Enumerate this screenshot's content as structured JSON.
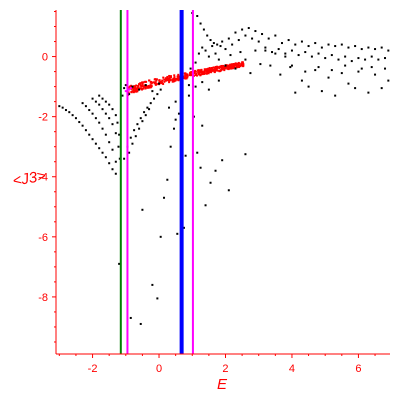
{
  "chart_data": {
    "type": "scatter",
    "xlabel": "E",
    "ylabel": "<J3>",
    "xlim": [
      -3.1,
      6.95
    ],
    "ylim": [
      -9.9,
      1.55
    ],
    "x_ticks": [
      -2,
      0,
      2,
      4,
      6
    ],
    "y_ticks": [
      0,
      -2,
      -4,
      -6,
      -8
    ],
    "colors": {
      "axis": "#ff0000",
      "points_black": "#000000",
      "points_red": "#ff0000"
    },
    "vertical_lines": [
      {
        "x": -1.15,
        "color": "#008000",
        "width": 2
      },
      {
        "x": -0.95,
        "color": "#ff00ff",
        "width": 2
      },
      {
        "x": 0.68,
        "color": "#0000ff",
        "width": 4
      },
      {
        "x": 1.02,
        "color": "#ff00ff",
        "width": 2
      }
    ],
    "series": [
      {
        "color": "#000000",
        "points": [
          [
            -3.0,
            -1.65
          ],
          [
            -2.9,
            -1.7
          ],
          [
            -2.8,
            -1.78
          ],
          [
            -2.7,
            -1.85
          ],
          [
            -2.6,
            -1.95
          ],
          [
            -2.5,
            -2.05
          ],
          [
            -2.4,
            -2.18
          ],
          [
            -2.3,
            -2.3
          ],
          [
            -2.2,
            -2.45
          ],
          [
            -2.1,
            -2.6
          ],
          [
            -2.0,
            -2.75
          ],
          [
            -1.9,
            -2.9
          ],
          [
            -1.8,
            -3.05
          ],
          [
            -1.7,
            -3.2
          ],
          [
            -1.6,
            -3.35
          ],
          [
            -1.5,
            -3.55
          ],
          [
            -1.4,
            -3.75
          ],
          [
            -1.3,
            -3.9
          ],
          [
            -2.3,
            -1.55
          ],
          [
            -2.2,
            -1.65
          ],
          [
            -2.1,
            -1.78
          ],
          [
            -2.0,
            -1.9
          ],
          [
            -1.9,
            -2.05
          ],
          [
            -1.8,
            -2.2
          ],
          [
            -1.7,
            -2.4
          ],
          [
            -1.6,
            -2.6
          ],
          [
            -1.5,
            -2.85
          ],
          [
            -1.4,
            -3.1
          ],
          [
            -1.3,
            -3.5
          ],
          [
            -2.0,
            -1.4
          ],
          [
            -1.9,
            -1.5
          ],
          [
            -1.8,
            -1.6
          ],
          [
            -1.7,
            -1.75
          ],
          [
            -1.6,
            -1.9
          ],
          [
            -1.5,
            -2.05
          ],
          [
            -1.4,
            -2.25
          ],
          [
            -1.3,
            -2.55
          ],
          [
            -1.8,
            -1.3
          ],
          [
            -1.7,
            -1.4
          ],
          [
            -1.6,
            -1.5
          ],
          [
            -1.5,
            -1.6
          ],
          [
            -1.4,
            -1.75
          ],
          [
            -1.3,
            -1.95
          ],
          [
            -1.25,
            -2.2
          ],
          [
            -1.2,
            -2.6
          ],
          [
            -1.22,
            -3.0
          ],
          [
            -1.18,
            -3.4
          ],
          [
            -1.05,
            -3.4
          ],
          [
            -0.95,
            -3.0
          ],
          [
            -0.85,
            -2.7
          ],
          [
            -0.75,
            -2.45
          ],
          [
            -0.65,
            -2.25
          ],
          [
            -0.55,
            -2.05
          ],
          [
            -0.45,
            -1.85
          ],
          [
            -0.35,
            -1.7
          ],
          [
            -0.25,
            -1.55
          ],
          [
            -0.15,
            -1.4
          ],
          [
            -0.05,
            -1.25
          ],
          [
            0.05,
            -1.1
          ],
          [
            -0.9,
            -3.2
          ],
          [
            -0.8,
            -2.9
          ],
          [
            -0.7,
            -2.65
          ],
          [
            -0.6,
            -2.4
          ],
          [
            -0.5,
            -2.15
          ],
          [
            -0.4,
            -1.95
          ],
          [
            -0.3,
            -1.75
          ],
          [
            -1.1,
            -1.3
          ],
          [
            -1.05,
            -1.05
          ],
          [
            -1.0,
            -0.95
          ],
          [
            -0.9,
            -1.25
          ],
          [
            -0.8,
            -1.0
          ],
          [
            -0.6,
            -1.1
          ],
          [
            -0.4,
            -0.95
          ],
          [
            -0.2,
            -1.15
          ],
          [
            0.0,
            -0.9
          ],
          [
            -1.2,
            -6.9
          ],
          [
            -0.85,
            -8.7
          ],
          [
            -0.55,
            -8.9
          ],
          [
            -0.5,
            -5.1
          ],
          [
            -0.2,
            -7.6
          ],
          [
            -0.05,
            -8.05
          ],
          [
            0.05,
            -6.0
          ],
          [
            0.15,
            -4.7
          ],
          [
            0.25,
            -4.1
          ],
          [
            0.35,
            -3.0
          ],
          [
            0.45,
            -2.4
          ],
          [
            0.5,
            -2.1
          ],
          [
            0.55,
            -5.9
          ],
          [
            0.6,
            -1.9
          ],
          [
            0.75,
            -5.7
          ],
          [
            0.8,
            -3.3
          ],
          [
            0.9,
            -1.3
          ],
          [
            1.05,
            -2.0
          ],
          [
            1.15,
            -3.2
          ],
          [
            1.25,
            -3.7
          ],
          [
            1.3,
            -2.3
          ],
          [
            1.4,
            -4.95
          ],
          [
            1.55,
            -4.2
          ],
          [
            1.7,
            -3.8
          ],
          [
            1.9,
            -3.45
          ],
          [
            2.1,
            -4.45
          ],
          [
            2.6,
            -3.25
          ],
          [
            1.0,
            1.45
          ],
          [
            1.15,
            1.35
          ],
          [
            1.25,
            1.1
          ],
          [
            1.35,
            0.9
          ],
          [
            1.45,
            0.7
          ],
          [
            1.55,
            0.55
          ],
          [
            1.65,
            0.45
          ],
          [
            1.75,
            0.4
          ],
          [
            1.85,
            0.35
          ],
          [
            0.95,
            -0.4
          ],
          [
            1.1,
            -0.2
          ],
          [
            1.2,
            0.1
          ],
          [
            1.3,
            0.3
          ],
          [
            1.4,
            0.2
          ],
          [
            1.5,
            0.0
          ],
          [
            1.6,
            0.35
          ],
          [
            1.7,
            0.1
          ],
          [
            1.8,
            -0.1
          ],
          [
            1.9,
            0.5
          ],
          [
            2.0,
            0.25
          ],
          [
            2.1,
            0.6
          ],
          [
            2.2,
            0.4
          ],
          [
            2.3,
            0.8
          ],
          [
            2.4,
            0.55
          ],
          [
            2.5,
            0.9
          ],
          [
            2.6,
            0.7
          ],
          [
            2.7,
            0.95
          ],
          [
            2.8,
            0.6
          ],
          [
            2.9,
            0.85
          ],
          [
            3.0,
            0.5
          ],
          [
            2.0,
            -0.3
          ],
          [
            2.15,
            0.05
          ],
          [
            2.3,
            -0.4
          ],
          [
            2.45,
            0.15
          ],
          [
            2.6,
            -0.1
          ],
          [
            2.75,
            -0.55
          ],
          [
            2.9,
            0.2
          ],
          [
            3.05,
            -0.25
          ],
          [
            3.2,
            0.3
          ],
          [
            3.35,
            -0.3
          ],
          [
            3.5,
            0.1
          ],
          [
            3.65,
            -0.6
          ],
          [
            3.8,
            0.0
          ],
          [
            3.95,
            -0.35
          ],
          [
            3.1,
            0.75
          ],
          [
            3.3,
            0.6
          ],
          [
            3.5,
            0.7
          ],
          [
            3.7,
            0.45
          ],
          [
            3.9,
            0.55
          ],
          [
            4.1,
            0.4
          ],
          [
            4.3,
            0.5
          ],
          [
            4.5,
            0.35
          ],
          [
            4.7,
            0.45
          ],
          [
            4.9,
            0.3
          ],
          [
            5.1,
            0.4
          ],
          [
            5.3,
            0.35
          ],
          [
            5.5,
            0.4
          ],
          [
            5.7,
            0.3
          ],
          [
            5.9,
            0.35
          ],
          [
            6.1,
            0.25
          ],
          [
            6.3,
            0.3
          ],
          [
            6.5,
            0.25
          ],
          [
            6.7,
            0.3
          ],
          [
            6.9,
            0.2
          ],
          [
            3.2,
            0.2
          ],
          [
            3.4,
            0.15
          ],
          [
            3.6,
            0.25
          ],
          [
            3.8,
            0.1
          ],
          [
            4.0,
            0.2
          ],
          [
            4.2,
            0.05
          ],
          [
            4.4,
            0.15
          ],
          [
            4.6,
            0.0
          ],
          [
            4.8,
            0.1
          ],
          [
            5.0,
            -0.05
          ],
          [
            5.2,
            0.05
          ],
          [
            5.4,
            -0.1
          ],
          [
            5.6,
            0.0
          ],
          [
            5.8,
            -0.15
          ],
          [
            6.0,
            -0.05
          ],
          [
            6.2,
            -0.1
          ],
          [
            6.4,
            0.0
          ],
          [
            6.6,
            -0.1
          ],
          [
            6.8,
            -0.05
          ],
          [
            4.1,
            -1.2
          ],
          [
            4.3,
            -0.8
          ],
          [
            4.5,
            -1.0
          ],
          [
            4.7,
            -0.45
          ],
          [
            4.9,
            -1.15
          ],
          [
            5.1,
            -0.7
          ],
          [
            5.3,
            -1.3
          ],
          [
            5.5,
            -0.55
          ],
          [
            5.7,
            -0.9
          ],
          [
            5.9,
            -1.05
          ],
          [
            6.1,
            -0.4
          ],
          [
            6.3,
            -1.2
          ],
          [
            6.5,
            -0.6
          ],
          [
            6.7,
            -1.05
          ],
          [
            6.9,
            -0.8
          ],
          [
            4.0,
            -0.3
          ],
          [
            4.4,
            -0.5
          ],
          [
            4.8,
            -0.35
          ],
          [
            5.2,
            -0.45
          ],
          [
            5.6,
            -0.3
          ],
          [
            6.0,
            -0.5
          ],
          [
            6.4,
            -0.35
          ],
          [
            6.8,
            -0.4
          ],
          [
            0.3,
            -1.7
          ],
          [
            0.5,
            -1.5
          ],
          [
            0.7,
            -1.35
          ],
          [
            0.9,
            -0.95
          ],
          [
            1.1,
            -1.0
          ],
          [
            1.3,
            -0.85
          ],
          [
            1.5,
            -1.1
          ],
          [
            1.8,
            -0.8
          ]
        ]
      },
      {
        "color": "#ff00ff",
        "points": [
          [
            -1.0,
            -1.15
          ],
          [
            -0.95,
            -1.2
          ],
          [
            -0.9,
            -1.1
          ],
          [
            -0.85,
            -1.05
          ]
        ]
      }
    ],
    "red_band": {
      "color": "#ff0000",
      "x_start": -0.95,
      "x_end": 2.55,
      "y_start": -1.15,
      "y_end": -0.25,
      "spread": 0.28
    }
  }
}
